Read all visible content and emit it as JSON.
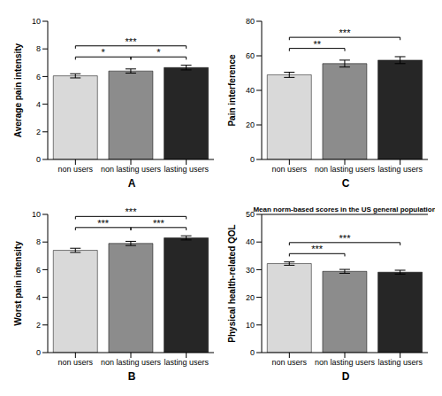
{
  "chart_data": [
    {
      "type": "bar",
      "panel": "A",
      "y_label": "Average pain intensity",
      "categories": [
        "non users",
        "non lasting users",
        "lasting users"
      ],
      "values": [
        6.05,
        6.4,
        6.65
      ],
      "errors": [
        0.15,
        0.15,
        0.17
      ],
      "colors": [
        "#d9d9d9",
        "#8c8c8c",
        "#262626"
      ],
      "ylim": [
        0,
        10
      ],
      "yticks": [
        0,
        2,
        4,
        6,
        8,
        10
      ],
      "comparisons": [
        {
          "groups": [
            "non users",
            "non lasting users"
          ],
          "label": "*"
        },
        {
          "groups": [
            "non lasting users",
            "lasting users"
          ],
          "label": "*"
        },
        {
          "groups": [
            "non users",
            "lasting users"
          ],
          "label": "***"
        }
      ]
    },
    {
      "type": "bar",
      "panel": "C",
      "y_label": "Pain interference",
      "categories": [
        "non users",
        "non lasting users",
        "lasting users"
      ],
      "values": [
        49,
        55.5,
        57.5
      ],
      "errors": [
        1.5,
        2,
        2
      ],
      "colors": [
        "#d9d9d9",
        "#8c8c8c",
        "#262626"
      ],
      "ylim": [
        0,
        80
      ],
      "yticks": [
        0,
        20,
        40,
        60,
        80
      ],
      "comparisons": [
        {
          "groups": [
            "non users",
            "non lasting users"
          ],
          "label": "**"
        },
        {
          "groups": [
            "non users",
            "lasting users"
          ],
          "label": "***"
        }
      ]
    },
    {
      "type": "bar",
      "panel": "B",
      "y_label": "Worst pain intensity",
      "categories": [
        "non users",
        "non lasting users",
        "lasting users"
      ],
      "values": [
        7.4,
        7.9,
        8.3
      ],
      "errors": [
        0.15,
        0.15,
        0.15
      ],
      "colors": [
        "#d9d9d9",
        "#8c8c8c",
        "#262626"
      ],
      "ylim": [
        0,
        10
      ],
      "yticks": [
        0,
        2,
        4,
        6,
        8,
        10
      ],
      "comparisons": [
        {
          "groups": [
            "non users",
            "non lasting users"
          ],
          "label": "***"
        },
        {
          "groups": [
            "non lasting users",
            "lasting users"
          ],
          "label": "***"
        },
        {
          "groups": [
            "non users",
            "lasting users"
          ],
          "label": "***"
        }
      ]
    },
    {
      "type": "bar",
      "panel": "D",
      "y_label": "Physical health-related QOL",
      "categories": [
        "non users",
        "non lasting users",
        "lasting users"
      ],
      "values": [
        32.2,
        29.4,
        29.1
      ],
      "errors": [
        0.6,
        0.7,
        0.7
      ],
      "colors": [
        "#d9d9d9",
        "#8c8c8c",
        "#262626"
      ],
      "ylim": [
        0,
        50
      ],
      "yticks": [
        0,
        10,
        20,
        30,
        40,
        50
      ],
      "reference": {
        "value": 50,
        "label": "Mean norm-based scores in the US general population"
      },
      "comparisons": [
        {
          "groups": [
            "non users",
            "non lasting users"
          ],
          "label": "***"
        },
        {
          "groups": [
            "non users",
            "lasting users"
          ],
          "label": "***"
        }
      ]
    }
  ]
}
